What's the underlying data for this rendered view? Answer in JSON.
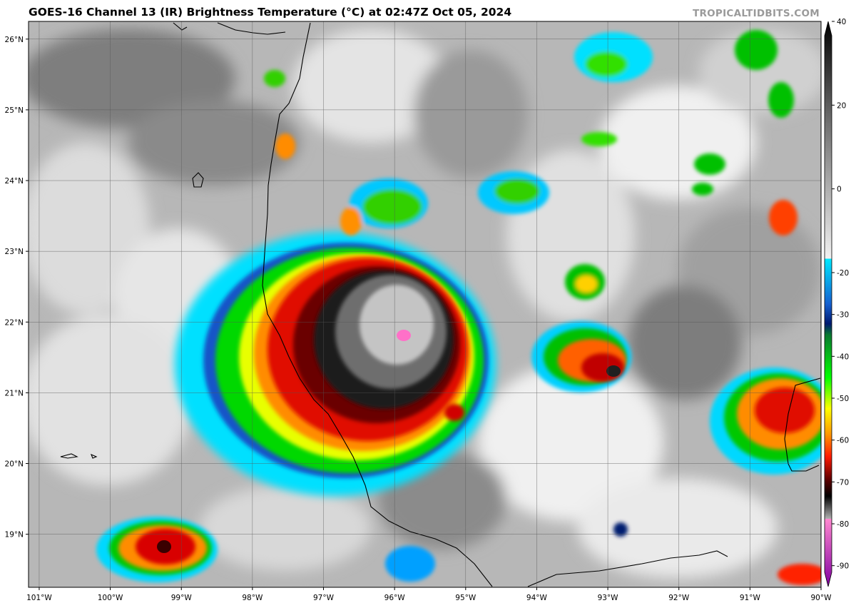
{
  "header": {
    "title": "GOES-16 Channel 13 (IR) Brightness Temperature (°C) at 02:47Z Oct 05, 2024",
    "credit": "TROPICALTIDBITS.COM"
  },
  "map": {
    "lon_range": [
      -101.15,
      -90.0
    ],
    "lat_range": [
      18.25,
      26.25
    ],
    "lat_ticks": [
      "19°N",
      "20°N",
      "21°N",
      "22°N",
      "23°N",
      "24°N",
      "25°N",
      "26°N"
    ],
    "lon_ticks": [
      "101°W",
      "100°W",
      "99°W",
      "98°W",
      "97°W",
      "96°W",
      "95°W",
      "94°W",
      "93°W",
      "92°W",
      "91°W",
      "90°W"
    ]
  },
  "colorbar": {
    "ticks": [
      "40",
      "20",
      "0",
      "-20",
      "-30",
      "-40",
      "-50",
      "-60",
      "-70",
      "-80",
      "-90"
    ],
    "range": [
      -95,
      40
    ]
  },
  "colors": {
    "title": "#000000",
    "credit": "#9a9a9a",
    "coastline": "#000000",
    "grid": "#555555"
  },
  "features": {
    "storm_center": "cold cloud-top core near 21.7N 96.0W",
    "coastline": "Mexican Gulf coast from Texas border south to Yucatán"
  }
}
